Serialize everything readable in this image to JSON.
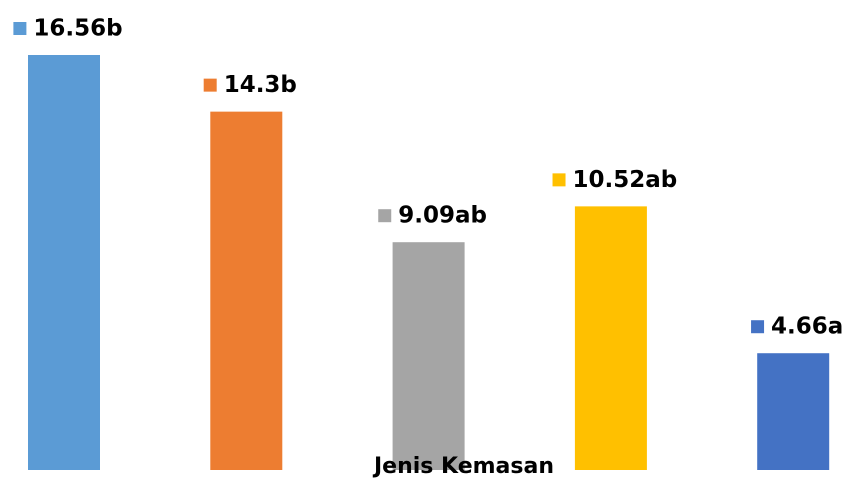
{
  "chart_data": {
    "type": "bar",
    "categories": [
      null,
      null,
      null,
      null,
      null
    ],
    "values": [
      16.56,
      14.3,
      9.09,
      10.52,
      4.66
    ],
    "value_labels": [
      "16.56b",
      "14.3b",
      "9.09ab",
      "10.52ab",
      "4.66a"
    ],
    "colors": [
      "#5b9bd5",
      "#ed7d31",
      "#a5a5a5",
      "#ffc000",
      "#4472c4"
    ],
    "xlabel": "Jenis Kemasan"
  }
}
